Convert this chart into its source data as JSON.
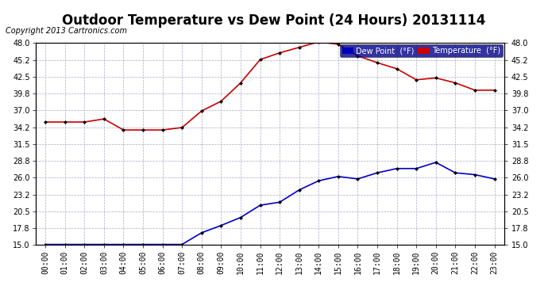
{
  "title": "Outdoor Temperature vs Dew Point (24 Hours) 20131114",
  "copyright_text": "Copyright 2013 Cartronics.com",
  "background_color": "#ffffff",
  "plot_bg_color": "#ffffff",
  "grid_color": "#aaaacc",
  "outer_border_color": "#000000",
  "x_labels": [
    "00:00",
    "01:00",
    "02:00",
    "03:00",
    "04:00",
    "05:00",
    "06:00",
    "07:00",
    "08:00",
    "09:00",
    "10:00",
    "11:00",
    "12:00",
    "13:00",
    "14:00",
    "15:00",
    "16:00",
    "17:00",
    "18:00",
    "19:00",
    "20:00",
    "21:00",
    "22:00",
    "23:00"
  ],
  "ylim": [
    15.0,
    48.0
  ],
  "yticks": [
    15.0,
    17.8,
    20.5,
    23.2,
    26.0,
    28.8,
    31.5,
    34.2,
    37.0,
    39.8,
    42.5,
    45.2,
    48.0
  ],
  "temperature_color": "#cc0000",
  "dewpoint_color": "#0000cc",
  "marker_color": "#000000",
  "temperature_data": [
    35.1,
    35.1,
    35.1,
    35.6,
    33.8,
    33.8,
    33.8,
    34.2,
    36.9,
    38.5,
    41.5,
    45.3,
    46.4,
    47.3,
    48.2,
    47.8,
    45.9,
    44.8,
    43.8,
    42.0,
    42.3,
    41.5,
    40.3,
    40.3
  ],
  "dewpoint_data": [
    15.1,
    15.1,
    15.1,
    15.1,
    15.1,
    15.1,
    15.1,
    15.1,
    17.0,
    18.2,
    19.5,
    21.5,
    22.0,
    24.0,
    25.5,
    26.2,
    25.8,
    26.8,
    27.5,
    27.5,
    28.5,
    26.8,
    26.5,
    25.8
  ],
  "legend_dew_label": "Dew Point  (°F)",
  "legend_temp_label": "Temperature  (°F)",
  "legend_dew_color": "#0000bb",
  "legend_temp_color": "#cc0000",
  "legend_text_color": "#ffffff",
  "legend_bg_color": "#000088",
  "title_fontsize": 12,
  "tick_fontsize": 7,
  "copyright_fontsize": 7
}
